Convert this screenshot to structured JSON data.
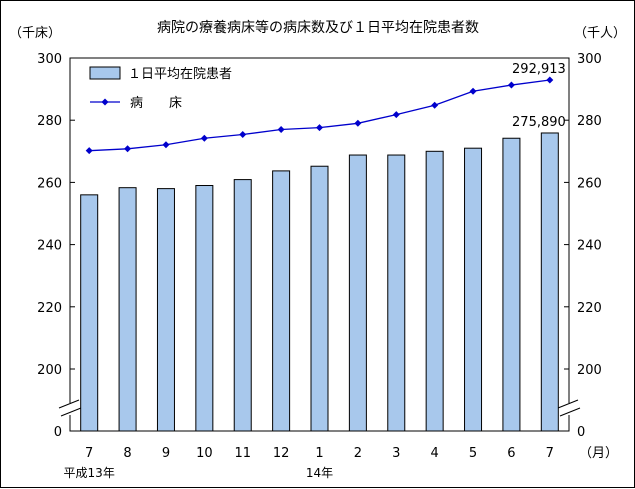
{
  "chart_data": {
    "type": "bar",
    "title": "病院の療養病床等の病床数及び１日平均在院患者数",
    "left_unit": "（千床）",
    "right_unit": "（千人）",
    "x_unit": "（月）",
    "y_ticks": [
      0,
      200,
      220,
      240,
      260,
      280,
      300
    ],
    "ylim": [
      200,
      300
    ],
    "axis_break": true,
    "categories": [
      "7",
      "8",
      "9",
      "10",
      "11",
      "12",
      "1",
      "2",
      "3",
      "4",
      "5",
      "6",
      "7"
    ],
    "year_labels": [
      {
        "label": "平成13年",
        "category_index": 0
      },
      {
        "label": "14年",
        "category_index": 6
      }
    ],
    "series": [
      {
        "name": "１日平均在院患者",
        "kind": "bar",
        "color": "#a8c8ec",
        "axis": "right",
        "values": [
          256.0,
          258.3,
          258.0,
          259.0,
          260.9,
          263.7,
          265.2,
          268.8,
          268.8,
          270.0,
          271.0,
          274.2,
          275.89
        ]
      },
      {
        "name": "病　　床",
        "kind": "line",
        "color": "#0000cc",
        "axis": "left",
        "values": [
          270.2,
          270.8,
          272.1,
          274.2,
          275.4,
          277.0,
          277.6,
          279.0,
          281.8,
          284.8,
          289.3,
          291.3,
          292.913
        ]
      }
    ],
    "data_labels": [
      {
        "series": 1,
        "index": 12,
        "text": "292,913"
      },
      {
        "series": 0,
        "index": 12,
        "text": "275,890"
      }
    ],
    "legend_position": "top-left"
  }
}
